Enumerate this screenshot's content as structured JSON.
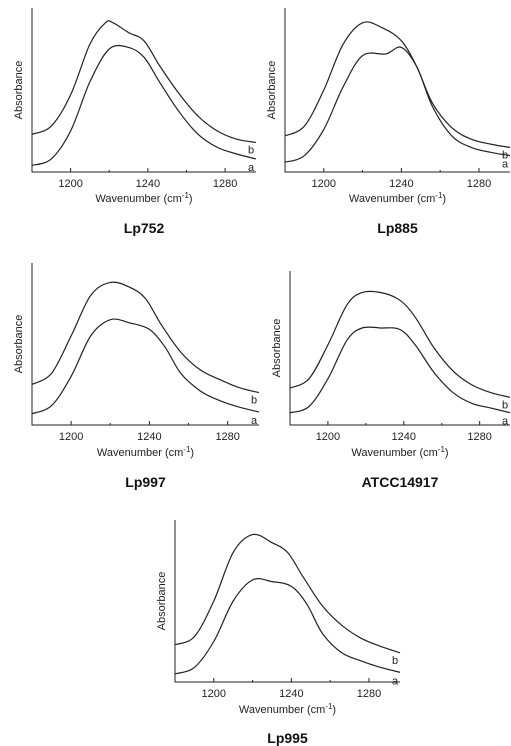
{
  "chart_data": [
    {
      "type": "line",
      "title": "Lp752",
      "xlabel": "Wavenumber (cm",
      "xlabel_sup": "-1",
      "xlabel_close": ")",
      "ylabel": "Absorbance",
      "xlim": [
        1180,
        1296
      ],
      "xticks": [
        1200,
        1240,
        1280
      ],
      "grid": false,
      "y_units": "arbitrary",
      "series": [
        {
          "name": "b",
          "x": [
            1180,
            1190,
            1200,
            1210,
            1218,
            1222,
            1230,
            1238,
            1246,
            1256,
            1266,
            1276,
            1286,
            1296
          ],
          "y": [
            0.77,
            0.72,
            0.53,
            0.22,
            0.09,
            0.09,
            0.15,
            0.2,
            0.35,
            0.52,
            0.66,
            0.75,
            0.8,
            0.82
          ]
        },
        {
          "name": "a",
          "x": [
            1180,
            1190,
            1200,
            1210,
            1220,
            1230,
            1238,
            1246,
            1256,
            1266,
            1276,
            1286,
            1296
          ],
          "y": [
            0.96,
            0.92,
            0.75,
            0.45,
            0.25,
            0.24,
            0.3,
            0.45,
            0.63,
            0.77,
            0.85,
            0.89,
            0.92
          ]
        }
      ]
    },
    {
      "type": "line",
      "title": "Lp885",
      "xlabel": "Wavenumber (cm",
      "xlabel_sup": "-1",
      "xlabel_close": ")",
      "ylabel": "Absorbance",
      "xlim": [
        1180,
        1296
      ],
      "xticks": [
        1200,
        1240,
        1280
      ],
      "grid": false,
      "y_units": "arbitrary",
      "series": [
        {
          "name": "b",
          "x": [
            1180,
            1190,
            1200,
            1210,
            1220,
            1230,
            1240,
            1248,
            1256,
            1266,
            1276,
            1286,
            1296
          ],
          "y": [
            0.78,
            0.72,
            0.5,
            0.22,
            0.09,
            0.12,
            0.2,
            0.36,
            0.58,
            0.73,
            0.8,
            0.83,
            0.85
          ]
        },
        {
          "name": "a",
          "x": [
            1180,
            1190,
            1200,
            1210,
            1220,
            1232,
            1240,
            1248,
            1256,
            1266,
            1276,
            1286,
            1296
          ],
          "y": [
            0.94,
            0.9,
            0.74,
            0.48,
            0.29,
            0.28,
            0.24,
            0.36,
            0.6,
            0.78,
            0.85,
            0.88,
            0.9
          ]
        }
      ]
    },
    {
      "type": "line",
      "title": "Lp997",
      "xlabel": "Wavenumber (cm",
      "xlabel_sup": "-1",
      "xlabel_close": ")",
      "ylabel": "Absorbance",
      "xlim": [
        1180,
        1296
      ],
      "xticks": [
        1200,
        1240,
        1280
      ],
      "grid": false,
      "y_units": "arbitrary",
      "series": [
        {
          "name": "b",
          "x": [
            1180,
            1190,
            1200,
            1210,
            1220,
            1230,
            1238,
            1246,
            1256,
            1266,
            1276,
            1286,
            1296
          ],
          "y": [
            0.75,
            0.68,
            0.45,
            0.2,
            0.12,
            0.15,
            0.22,
            0.38,
            0.55,
            0.66,
            0.72,
            0.77,
            0.8
          ]
        },
        {
          "name": "a",
          "x": [
            1180,
            1190,
            1200,
            1210,
            1220,
            1230,
            1240,
            1248,
            1256,
            1266,
            1276,
            1286,
            1296
          ],
          "y": [
            0.93,
            0.88,
            0.7,
            0.45,
            0.35,
            0.37,
            0.41,
            0.52,
            0.68,
            0.79,
            0.85,
            0.89,
            0.92
          ]
        }
      ]
    },
    {
      "type": "line",
      "title": "ATCC14917",
      "xlabel": "Wavenumber (cm",
      "xlabel_sup": "-1",
      "xlabel_close": ")",
      "ylabel": "Absorbance",
      "xlim": [
        1180,
        1296
      ],
      "xticks": [
        1200,
        1240,
        1280
      ],
      "grid": false,
      "y_units": "arbitrary",
      "series": [
        {
          "name": "b",
          "x": [
            1180,
            1190,
            1200,
            1210,
            1218,
            1228,
            1238,
            1246,
            1256,
            1266,
            1276,
            1286,
            1296
          ],
          "y": [
            0.76,
            0.7,
            0.48,
            0.22,
            0.14,
            0.14,
            0.19,
            0.3,
            0.5,
            0.65,
            0.74,
            0.79,
            0.82
          ]
        },
        {
          "name": "a",
          "x": [
            1180,
            1190,
            1200,
            1210,
            1218,
            1228,
            1238,
            1246,
            1256,
            1266,
            1276,
            1286,
            1296
          ],
          "y": [
            0.92,
            0.88,
            0.7,
            0.45,
            0.37,
            0.37,
            0.38,
            0.48,
            0.66,
            0.79,
            0.86,
            0.89,
            0.92
          ]
        }
      ]
    },
    {
      "type": "line",
      "title": "Lp995",
      "xlabel": "Wavenumber (cm",
      "xlabel_sup": "-1",
      "xlabel_close": ")",
      "ylabel": "Absorbance",
      "xlim": [
        1180,
        1296
      ],
      "xticks": [
        1200,
        1240,
        1280
      ],
      "grid": false,
      "y_units": "arbitrary",
      "series": [
        {
          "name": "b",
          "x": [
            1180,
            1190,
            1200,
            1210,
            1220,
            1230,
            1238,
            1246,
            1256,
            1266,
            1276,
            1286,
            1296
          ],
          "y": [
            0.77,
            0.72,
            0.5,
            0.2,
            0.09,
            0.14,
            0.2,
            0.35,
            0.53,
            0.65,
            0.73,
            0.78,
            0.82
          ]
        },
        {
          "name": "a",
          "x": [
            1180,
            1190,
            1200,
            1210,
            1220,
            1230,
            1240,
            1248,
            1256,
            1266,
            1276,
            1286,
            1296
          ],
          "y": [
            0.95,
            0.91,
            0.75,
            0.5,
            0.37,
            0.38,
            0.41,
            0.52,
            0.7,
            0.82,
            0.87,
            0.91,
            0.94
          ]
        }
      ]
    }
  ]
}
